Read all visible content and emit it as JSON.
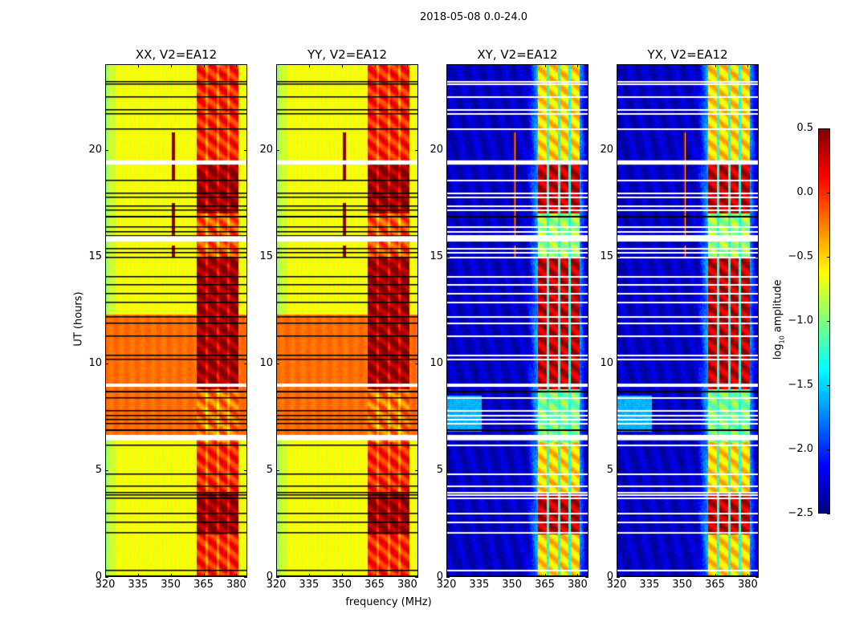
{
  "chart_data": {
    "type": "heatmap",
    "title": "2018-05-08 0.0-24.0",
    "xlabel": "frequency (MHz)",
    "ylabel": "UT (hours)",
    "xlim": [
      320,
      385
    ],
    "ylim": [
      0,
      24
    ],
    "xticks": [
      320,
      335,
      350,
      365,
      380
    ],
    "yticks": [
      0,
      5,
      10,
      15,
      20
    ],
    "colorbar": {
      "label_main": "log",
      "label_sub": "10",
      "label_rest": " amplitude",
      "colormap": "jet",
      "range": [
        -2.5,
        0.5
      ],
      "ticks": [
        "0.5",
        "0.0",
        "−0.5",
        "−1.0",
        "−1.5",
        "−2.0",
        "−2.5"
      ],
      "tick_values": [
        0.5,
        0.0,
        -0.5,
        -1.0,
        -1.5,
        -2.0,
        -2.5
      ]
    },
    "panels": [
      {
        "title": "XX, V2=EA12",
        "pol": "parallel",
        "spike": true
      },
      {
        "title": "YY, V2=EA12",
        "pol": "parallel",
        "spike": true
      },
      {
        "title": "XY, V2=EA12",
        "pol": "cross",
        "spike": true
      },
      {
        "title": "YX, V2=EA12",
        "pol": "cross",
        "spike": true
      }
    ],
    "model": {
      "rfi_block_mhz": [
        362,
        381
      ],
      "rfi_gaps_mhz": [
        [
          366,
          367
        ],
        [
          371,
          372
        ],
        [
          376,
          377
        ]
      ],
      "spike_mhz": [
        350.5,
        352
      ],
      "spike_hours": [
        15.0,
        20.8
      ],
      "parallel_background": -0.65,
      "parallel_band_hours": [
        6.6,
        12.3
      ],
      "parallel_band_level": -0.2,
      "cross_background": -2.3,
      "block_segments": [
        {
          "hours": [
            0,
            2
          ],
          "parallel": 0.05,
          "cross": -0.5
        },
        {
          "hours": [
            2,
            4
          ],
          "parallel": 0.45,
          "cross": 0.3
        },
        {
          "hours": [
            4,
            6.3
          ],
          "parallel": 0.05,
          "cross": -0.5
        },
        {
          "hours": [
            6.3,
            8.8
          ],
          "parallel": -0.2,
          "cross": -1.0
        },
        {
          "hours": [
            8.8,
            15
          ],
          "parallel": 0.45,
          "cross": 0.3
        },
        {
          "hours": [
            15,
            17
          ],
          "parallel": -0.1,
          "cross": -0.9
        },
        {
          "hours": [
            17,
            19.3
          ],
          "parallel": 0.45,
          "cross": 0.3
        },
        {
          "hours": [
            19.3,
            24
          ],
          "parallel": 0.05,
          "cross": -0.5
        }
      ],
      "flagged_hours": [
        23.2,
        23.1,
        22.5,
        21.9,
        21.7,
        21.0,
        18.6,
        18.0,
        17.8,
        17.4,
        17.2,
        16.9,
        16.4,
        16.2,
        16.0,
        15.4,
        15.2,
        15.0,
        14.1,
        13.7,
        13.3,
        12.9,
        12.2,
        11.9,
        11.3,
        10.4,
        10.2,
        8.4,
        7.8,
        7.6,
        7.4,
        7.2,
        6.2,
        4.85,
        4.3,
        4.0,
        3.85,
        3.7,
        3.0,
        2.6,
        2.1,
        0.35
      ],
      "flagged_bands": [
        [
          19.3,
          19.5
        ],
        [
          15.7,
          15.95
        ],
        [
          8.9,
          9.05
        ],
        [
          6.4,
          6.65
        ]
      ],
      "zero_hours": [
        16.9,
        8.7,
        6.9,
        0.0
      ]
    }
  }
}
